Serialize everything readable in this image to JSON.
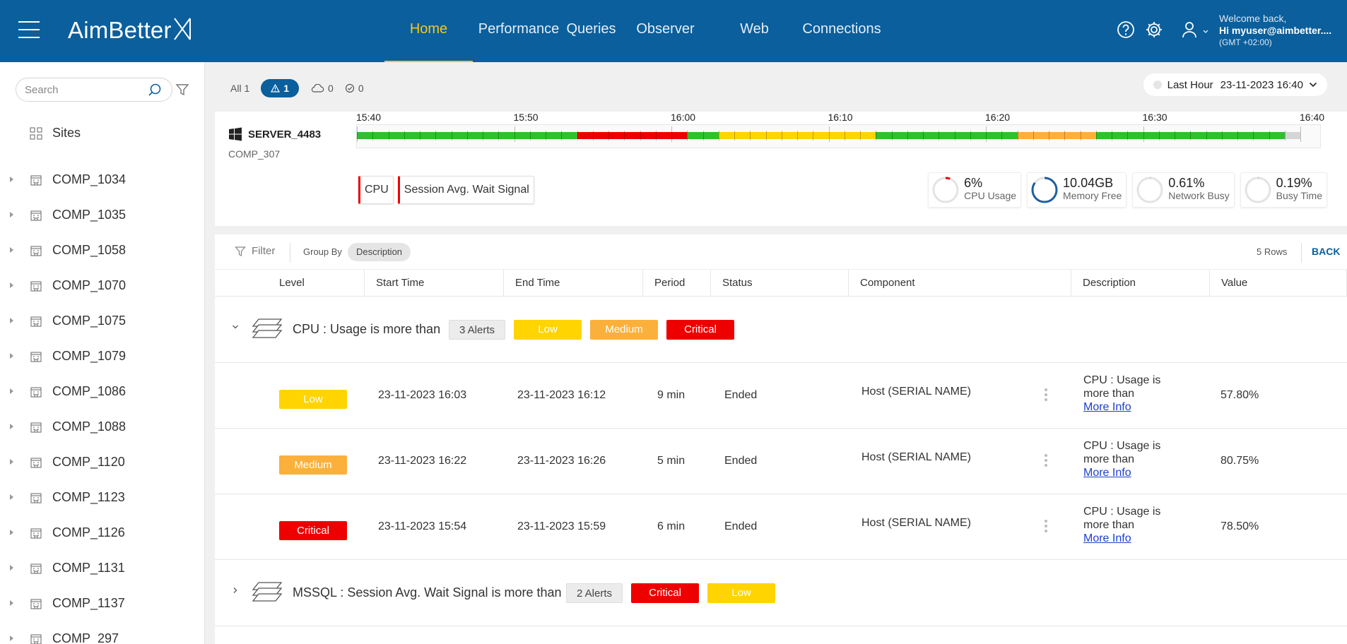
{
  "header": {
    "logo": "AimBetter",
    "nav": [
      {
        "label": "Home",
        "active": true
      },
      {
        "label": "Performance",
        "active": false
      },
      {
        "label": "Queries",
        "active": false
      },
      {
        "label": "Observer",
        "active": false
      },
      {
        "label": "Web",
        "active": false
      },
      {
        "label": "Connections",
        "active": false
      }
    ],
    "user": {
      "welcome": "Welcome back,",
      "greeting": "Hi myuser@aimbetter....",
      "timezone": "(GMT +02:00)"
    }
  },
  "sidebar": {
    "search_placeholder": "Search",
    "sites_label": "Sites",
    "companies": [
      "COMP_1034",
      "COMP_1035",
      "COMP_1058",
      "COMP_1070",
      "COMP_1075",
      "COMP_1079",
      "COMP_1086",
      "COMP_1088",
      "COMP_1120",
      "COMP_1123",
      "COMP_1126",
      "COMP_1131",
      "COMP_1137",
      "COMP_297"
    ]
  },
  "counters": {
    "all": "All 1",
    "alerts": "1",
    "cloud": "0",
    "checks": "0"
  },
  "time_select": {
    "range": "Last Hour",
    "datetime": "23-11-2023 16:40"
  },
  "server": {
    "name": "SERVER_4483",
    "company": "COMP_307",
    "timeline_labels": [
      "15:40",
      "15:50",
      "16:00",
      "16:10",
      "16:20",
      "16:30",
      "16:40"
    ],
    "tags": [
      "CPU",
      "Session Avg. Wait Signal"
    ],
    "metrics": [
      {
        "value": "6%",
        "name": "CPU Usage",
        "fraction": 0.06,
        "color": "#e00000"
      },
      {
        "value": "10.04GB",
        "name": "Memory Free",
        "fraction": 0.85,
        "color": "#1f5fa0"
      },
      {
        "value": "0.61%",
        "name": "Network Busy",
        "fraction": 0.006,
        "color": "#cccccc"
      },
      {
        "value": "0.19%",
        "name": "Busy Time",
        "fraction": 0.002,
        "color": "#cccccc"
      }
    ]
  },
  "toolbar": {
    "filter": "Filter",
    "group_by": "Group By",
    "group_chip": "Description",
    "rows": "5 Rows",
    "back": "BACK"
  },
  "columns": [
    "Level",
    "Start Time",
    "End Time",
    "Period",
    "Status",
    "Component",
    "Description",
    "Value"
  ],
  "groups": [
    {
      "title": "CPU : Usage is more than",
      "count": "3 Alerts",
      "badges": [
        {
          "label": "Low",
          "kind": "low"
        },
        {
          "label": "Medium",
          "kind": "medium"
        },
        {
          "label": "Critical",
          "kind": "critical"
        }
      ],
      "expanded": true,
      "rows": [
        {
          "level": "Low",
          "kind": "low",
          "start": "23-11-2023 16:03",
          "end": "23-11-2023 16:12",
          "period": "9 min",
          "status": "Ended",
          "component": "Host (SERIAL NAME)",
          "desc": "CPU : Usage is more than",
          "more": "More Info",
          "value": "57.80%"
        },
        {
          "level": "Medium",
          "kind": "medium",
          "start": "23-11-2023 16:22",
          "end": "23-11-2023 16:26",
          "period": "5 min",
          "status": "Ended",
          "component": "Host (SERIAL NAME)",
          "desc": "CPU : Usage is more than",
          "more": "More Info",
          "value": "80.75%"
        },
        {
          "level": "Critical",
          "kind": "critical",
          "start": "23-11-2023 15:54",
          "end": "23-11-2023 15:59",
          "period": "6 min",
          "status": "Ended",
          "component": "Host (SERIAL NAME)",
          "desc": "CPU : Usage is more than",
          "more": "More Info",
          "value": "78.50%"
        }
      ]
    },
    {
      "title": "MSSQL : Session Avg. Wait Signal is more than",
      "count": "2 Alerts",
      "badges": [
        {
          "label": "Critical",
          "kind": "critical"
        },
        {
          "label": "Low",
          "kind": "low"
        }
      ],
      "expanded": false,
      "rows": []
    }
  ],
  "colors": {
    "brand": "#0a5f9c",
    "active_nav": "#f7c61a",
    "ok": "#2fbf2f",
    "critical": "#ee0000",
    "low": "#ffd400",
    "medium": "#fbb03b"
  }
}
